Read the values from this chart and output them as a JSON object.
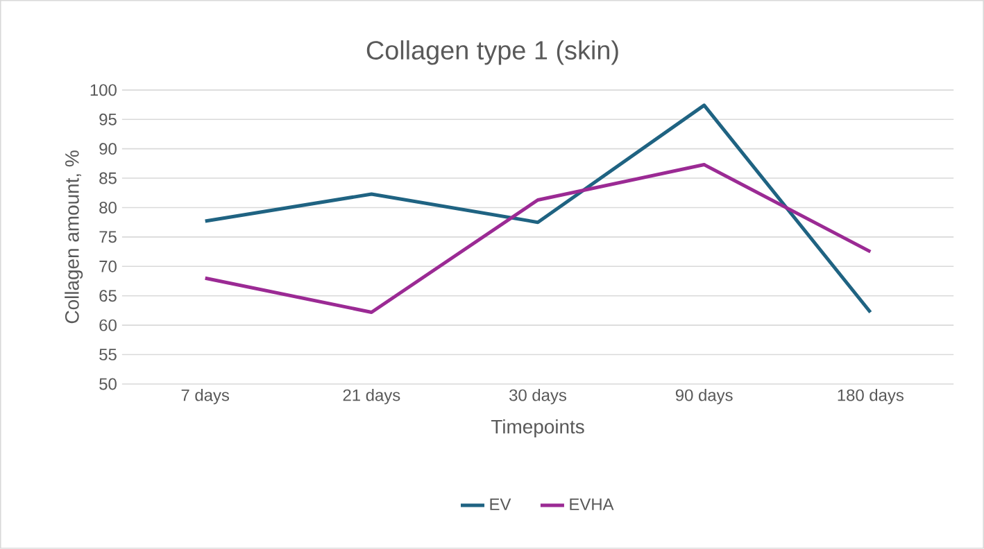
{
  "chart_data": {
    "type": "line",
    "title": "Collagen type 1 (skin)",
    "xlabel": "Timepoints",
    "ylabel": "Collagen amount, %",
    "categories": [
      "7 days",
      "21 days",
      "30 days",
      "90 days",
      "180 days"
    ],
    "series": [
      {
        "name": "EV",
        "color": "#1f6382",
        "values": [
          77.7,
          82.3,
          77.5,
          97.4,
          62.2
        ]
      },
      {
        "name": "EVHA",
        "color": "#9b2a94",
        "values": [
          68.0,
          62.2,
          81.3,
          87.3,
          72.5
        ]
      }
    ],
    "ylim": [
      50,
      100
    ],
    "yticks": [
      50,
      55,
      60,
      65,
      70,
      75,
      80,
      85,
      90,
      95,
      100
    ],
    "grid": "y",
    "legend": "bottom",
    "marker": "none",
    "line_style": "solid"
  }
}
